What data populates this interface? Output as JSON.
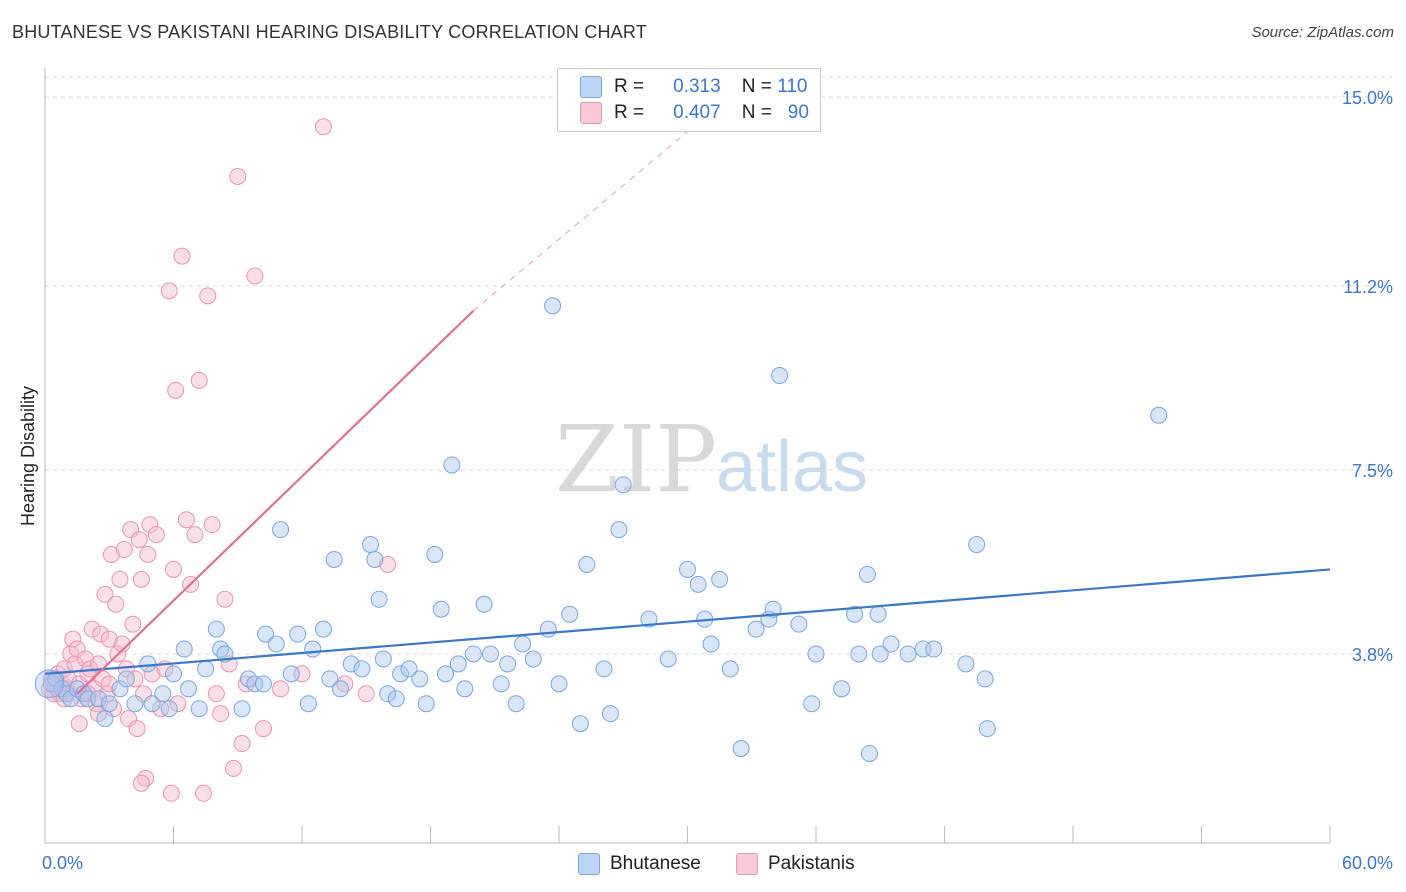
{
  "header": {
    "title": "BHUTANESE VS PAKISTANI HEARING DISABILITY CORRELATION CHART",
    "source": "Source: ZipAtlas.com"
  },
  "watermark": {
    "zip": "ZIP",
    "atlas": "atlas"
  },
  "legend": {
    "rows": [
      {
        "r_label": "R =",
        "r_value": "0.313",
        "n_label": "N =",
        "n_value": "110",
        "color": "#a9c8f0"
      },
      {
        "r_label": "R =",
        "r_value": "0.407",
        "n_label": "N =",
        "n_value": "90",
        "color": "#f7b8cc"
      }
    ]
  },
  "bottom_legend": [
    {
      "label": "Bhutanese",
      "color": "#a9c8f0"
    },
    {
      "label": "Pakistanis",
      "color": "#f7b8cc"
    }
  ],
  "chart_data": {
    "type": "scatter",
    "title": "BHUTANESE VS PAKISTANI HEARING DISABILITY CORRELATION CHART",
    "xlabel": "",
    "ylabel": "Hearing Disability",
    "xlim": [
      0,
      60
    ],
    "ylim": [
      0,
      15.4
    ],
    "x_tick_labels": [
      "0.0%",
      "60.0%"
    ],
    "y_ticks": [
      3.8,
      7.5,
      11.2,
      15.0
    ],
    "y_tick_labels": [
      "3.8%",
      "7.5%",
      "11.2%",
      "15.0%"
    ],
    "grid": "horizontal dashed",
    "legend_position": "top-center",
    "colors": {
      "blue": "#3a78c9",
      "blue_fill": "#a9c8f0",
      "pink": "#e0709a",
      "pink_fill": "#f7b8cc"
    },
    "series": [
      {
        "name": "Bhutanese",
        "color": "#3a78c9",
        "trend": {
          "x": [
            0,
            60
          ],
          "y": [
            3.4,
            5.5
          ],
          "dashed_from": null
        },
        "points": [
          [
            0.3,
            3.2
          ],
          [
            0.5,
            3.3
          ],
          [
            0.8,
            3.1
          ],
          [
            1.0,
            3.0
          ],
          [
            1.2,
            2.9
          ],
          [
            1.5,
            3.1
          ],
          [
            1.8,
            3.0
          ],
          [
            2.0,
            2.9
          ],
          [
            2.5,
            2.9
          ],
          [
            2.8,
            2.5
          ],
          [
            3.0,
            2.8
          ],
          [
            3.5,
            3.1
          ],
          [
            3.8,
            3.3
          ],
          [
            4.2,
            2.8
          ],
          [
            4.8,
            3.6
          ],
          [
            5.0,
            2.8
          ],
          [
            5.5,
            3.0
          ],
          [
            5.8,
            2.7
          ],
          [
            6.0,
            3.4
          ],
          [
            6.5,
            3.9
          ],
          [
            6.7,
            3.1
          ],
          [
            7.2,
            2.7
          ],
          [
            7.5,
            3.5
          ],
          [
            8.0,
            4.3
          ],
          [
            8.2,
            3.9
          ],
          [
            8.4,
            3.8
          ],
          [
            9.2,
            2.7
          ],
          [
            9.5,
            3.3
          ],
          [
            9.8,
            3.2
          ],
          [
            10.2,
            3.2
          ],
          [
            10.3,
            4.2
          ],
          [
            10.8,
            4.0
          ],
          [
            11.0,
            6.3
          ],
          [
            11.5,
            3.4
          ],
          [
            11.8,
            4.2
          ],
          [
            12.3,
            2.8
          ],
          [
            12.5,
            3.9
          ],
          [
            13.0,
            4.3
          ],
          [
            13.3,
            3.3
          ],
          [
            13.5,
            5.7
          ],
          [
            13.8,
            3.1
          ],
          [
            14.3,
            3.6
          ],
          [
            14.8,
            3.5
          ],
          [
            15.2,
            6.0
          ],
          [
            15.4,
            5.7
          ],
          [
            15.6,
            4.9
          ],
          [
            15.8,
            3.7
          ],
          [
            16.0,
            3.0
          ],
          [
            16.4,
            2.9
          ],
          [
            16.6,
            3.4
          ],
          [
            17.0,
            3.5
          ],
          [
            17.5,
            3.3
          ],
          [
            17.8,
            2.8
          ],
          [
            18.2,
            5.8
          ],
          [
            18.5,
            4.7
          ],
          [
            18.7,
            3.4
          ],
          [
            19.0,
            7.6
          ],
          [
            19.3,
            3.6
          ],
          [
            19.6,
            3.1
          ],
          [
            20.0,
            3.8
          ],
          [
            20.5,
            4.8
          ],
          [
            20.8,
            3.8
          ],
          [
            21.3,
            3.2
          ],
          [
            21.6,
            3.6
          ],
          [
            22.0,
            2.8
          ],
          [
            22.3,
            4.0
          ],
          [
            22.8,
            3.7
          ],
          [
            23.5,
            4.3
          ],
          [
            23.7,
            10.8
          ],
          [
            24.0,
            3.2
          ],
          [
            24.5,
            4.6
          ],
          [
            25.0,
            2.4
          ],
          [
            25.3,
            5.6
          ],
          [
            26.1,
            3.5
          ],
          [
            26.4,
            2.6
          ],
          [
            26.8,
            6.3
          ],
          [
            27.0,
            7.2
          ],
          [
            28.2,
            4.5
          ],
          [
            29.1,
            3.7
          ],
          [
            30.0,
            5.5
          ],
          [
            30.5,
            5.2
          ],
          [
            30.8,
            4.5
          ],
          [
            31.1,
            4.0
          ],
          [
            31.5,
            5.3
          ],
          [
            32.0,
            3.5
          ],
          [
            32.5,
            1.9
          ],
          [
            33.2,
            4.3
          ],
          [
            33.8,
            4.5
          ],
          [
            34.0,
            4.7
          ],
          [
            34.3,
            9.4
          ],
          [
            35.2,
            4.4
          ],
          [
            35.8,
            2.8
          ],
          [
            36.0,
            3.8
          ],
          [
            37.2,
            3.1
          ],
          [
            37.8,
            4.6
          ],
          [
            38.0,
            3.8
          ],
          [
            38.4,
            5.4
          ],
          [
            38.5,
            1.8
          ],
          [
            38.9,
            4.6
          ],
          [
            39.0,
            3.8
          ],
          [
            39.5,
            4.0
          ],
          [
            40.3,
            3.8
          ],
          [
            41.0,
            3.9
          ],
          [
            41.5,
            3.9
          ],
          [
            43.0,
            3.6
          ],
          [
            43.5,
            6.0
          ],
          [
            44.0,
            2.3
          ],
          [
            52.0,
            8.6
          ],
          [
            43.9,
            3.3
          ]
        ]
      },
      {
        "name": "Pakistanis",
        "color": "#e0709a",
        "trend": {
          "x": [
            1.5,
            20
          ],
          "y": [
            3.0,
            10.7
          ],
          "dashed_to": {
            "x": 30,
            "y": 14.3
          }
        },
        "points": [
          [
            0.2,
            3.1
          ],
          [
            0.3,
            3.3
          ],
          [
            0.4,
            3.0
          ],
          [
            0.5,
            3.2
          ],
          [
            0.6,
            3.4
          ],
          [
            0.7,
            3.0
          ],
          [
            0.8,
            3.2
          ],
          [
            0.9,
            3.5
          ],
          [
            1.0,
            3.1
          ],
          [
            1.1,
            3.3
          ],
          [
            1.2,
            3.8
          ],
          [
            1.3,
            4.1
          ],
          [
            1.4,
            3.6
          ],
          [
            1.5,
            3.9
          ],
          [
            1.6,
            3.2
          ],
          [
            1.7,
            2.9
          ],
          [
            1.8,
            3.0
          ],
          [
            1.9,
            3.7
          ],
          [
            2.0,
            3.4
          ],
          [
            2.1,
            3.5
          ],
          [
            2.2,
            4.3
          ],
          [
            2.3,
            3.1
          ],
          [
            2.4,
            2.8
          ],
          [
            2.5,
            3.6
          ],
          [
            2.6,
            4.2
          ],
          [
            2.7,
            3.3
          ],
          [
            2.8,
            5.0
          ],
          [
            2.9,
            3.0
          ],
          [
            3.0,
            3.2
          ],
          [
            3.1,
            5.8
          ],
          [
            3.2,
            2.7
          ],
          [
            3.3,
            4.8
          ],
          [
            3.4,
            3.8
          ],
          [
            3.5,
            5.3
          ],
          [
            3.6,
            4.0
          ],
          [
            3.7,
            5.9
          ],
          [
            3.8,
            3.5
          ],
          [
            3.9,
            2.5
          ],
          [
            4.0,
            6.3
          ],
          [
            4.1,
            4.4
          ],
          [
            4.2,
            3.3
          ],
          [
            4.3,
            2.3
          ],
          [
            4.4,
            6.1
          ],
          [
            4.5,
            5.3
          ],
          [
            4.6,
            3.0
          ],
          [
            4.7,
            1.3
          ],
          [
            4.8,
            5.8
          ],
          [
            4.9,
            6.4
          ],
          [
            5.0,
            3.4
          ],
          [
            5.2,
            6.2
          ],
          [
            5.4,
            2.7
          ],
          [
            5.6,
            3.5
          ],
          [
            5.8,
            11.1
          ],
          [
            6.0,
            5.5
          ],
          [
            6.2,
            2.8
          ],
          [
            6.4,
            11.8
          ],
          [
            6.6,
            6.5
          ],
          [
            6.8,
            5.2
          ],
          [
            7.0,
            6.2
          ],
          [
            7.2,
            9.3
          ],
          [
            7.4,
            1.0
          ],
          [
            7.6,
            11.0
          ],
          [
            7.8,
            6.4
          ],
          [
            8.0,
            3.0
          ],
          [
            8.2,
            2.6
          ],
          [
            8.4,
            4.9
          ],
          [
            8.6,
            3.6
          ],
          [
            8.8,
            1.5
          ],
          [
            9.0,
            13.4
          ],
          [
            9.2,
            2.0
          ],
          [
            9.4,
            3.2
          ],
          [
            9.8,
            11.4
          ],
          [
            10.2,
            2.3
          ],
          [
            11.0,
            3.1
          ],
          [
            12.0,
            3.4
          ],
          [
            13.0,
            14.4
          ],
          [
            14.0,
            3.2
          ],
          [
            15.0,
            3.0
          ],
          [
            16.0,
            5.6
          ],
          [
            4.5,
            1.2
          ],
          [
            6.1,
            9.1
          ],
          [
            5.9,
            1.0
          ],
          [
            1.0,
            3.0
          ],
          [
            0.9,
            2.9
          ],
          [
            0.6,
            3.1
          ],
          [
            0.4,
            3.2
          ],
          [
            1.6,
            2.4
          ],
          [
            2.0,
            3.0
          ],
          [
            3.0,
            4.1
          ],
          [
            2.5,
            2.6
          ]
        ]
      }
    ]
  }
}
